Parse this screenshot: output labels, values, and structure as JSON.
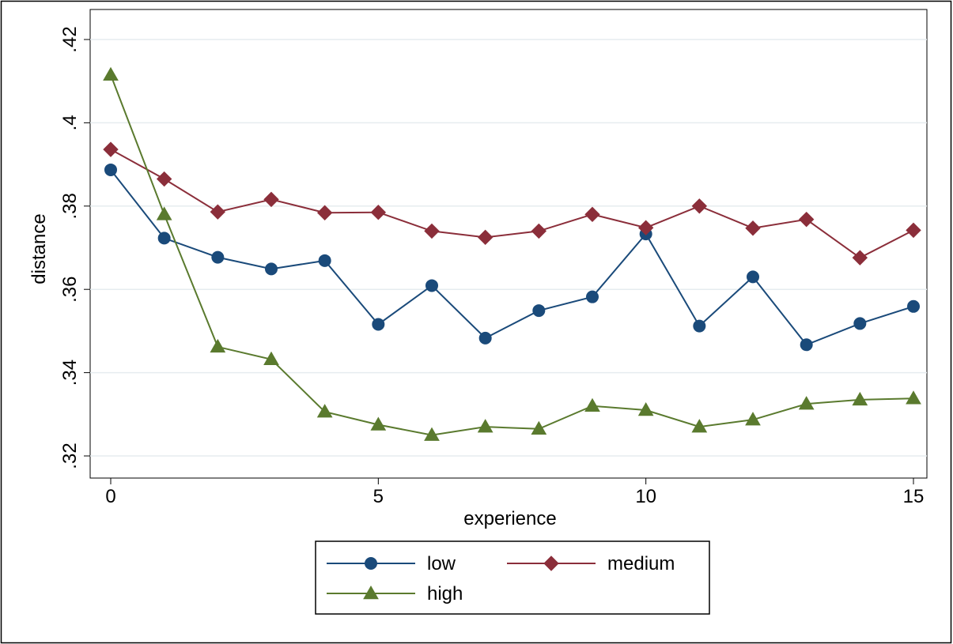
{
  "chart_data": {
    "type": "line",
    "xlabel": "experience",
    "ylabel": "distance",
    "xlim": [
      0,
      15
    ],
    "ylim": [
      0.32,
      0.42
    ],
    "x_ticks": [
      0,
      5,
      10,
      15
    ],
    "x_tick_labels": [
      "0",
      "5",
      "10",
      "15"
    ],
    "y_ticks": [
      0.32,
      0.34,
      0.36,
      0.38,
      0.4,
      0.42
    ],
    "y_tick_labels": [
      ".32",
      ".34",
      ".36",
      ".38",
      ".4",
      ".42"
    ],
    "grid": true,
    "legend_position": "bottom",
    "x": [
      0,
      1,
      2,
      3,
      4,
      5,
      6,
      7,
      8,
      9,
      10,
      11,
      12,
      13,
      14,
      15
    ],
    "series": [
      {
        "name": "low",
        "color": "#1a4a7a",
        "marker": "circle",
        "values": [
          0.3887,
          0.3723,
          0.3677,
          0.3649,
          0.3669,
          0.3516,
          0.3609,
          0.3483,
          0.3549,
          0.3582,
          0.3733,
          0.3512,
          0.363,
          0.3467,
          0.3518,
          0.3559
        ]
      },
      {
        "name": "medium",
        "color": "#8b2e3a",
        "marker": "diamond",
        "values": [
          0.3936,
          0.3865,
          0.3786,
          0.3816,
          0.3784,
          0.3785,
          0.374,
          0.3725,
          0.374,
          0.378,
          0.3748,
          0.38,
          0.3747,
          0.3768,
          0.3676,
          0.3742
        ]
      },
      {
        "name": "high",
        "color": "#5a7a2e",
        "marker": "triangle",
        "values": [
          0.4115,
          0.378,
          0.3462,
          0.3432,
          0.3306,
          0.3275,
          0.325,
          0.327,
          0.3265,
          0.332,
          0.331,
          0.327,
          0.3287,
          0.3325,
          0.3335,
          0.3338
        ]
      }
    ]
  }
}
